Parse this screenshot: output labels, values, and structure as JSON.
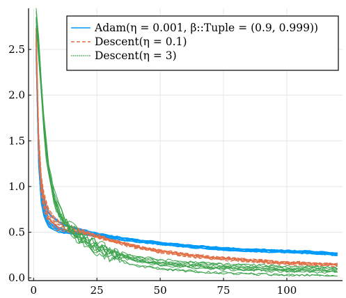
{
  "chart_data": {
    "type": "line",
    "title": "",
    "xlabel": "",
    "ylabel": "",
    "xlim": [
      -2,
      122
    ],
    "ylim": [
      -0.03,
      2.95
    ],
    "xticks": [
      0,
      25,
      50,
      75,
      100
    ],
    "xtick_labels": [
      "0",
      "25",
      "50",
      "75",
      "100"
    ],
    "yticks": [
      0.0,
      0.5,
      1.0,
      1.5,
      2.0,
      2.5
    ],
    "ytick_labels": [
      "0.0",
      "0.5",
      "1.0",
      "1.5",
      "2.0",
      "2.5"
    ],
    "grid": true,
    "legend_position": "top-right",
    "series": [
      {
        "name": "Adam(η = 0.001, β::Tuple = (0.9, 0.999))",
        "color": "#009AFA",
        "style": "solid",
        "runs": 10,
        "x": [
          1,
          2,
          3,
          4,
          5,
          6,
          8,
          10,
          12,
          15,
          20,
          25,
          30,
          40,
          50,
          60,
          70,
          80,
          90,
          100,
          110,
          120
        ],
        "values": [
          2.55,
          1.35,
          0.93,
          0.78,
          0.7,
          0.64,
          0.59,
          0.56,
          0.54,
          0.52,
          0.5,
          0.47,
          0.45,
          0.41,
          0.38,
          0.35,
          0.33,
          0.31,
          0.3,
          0.29,
          0.28,
          0.26
        ]
      },
      {
        "name": "Descent(η = 0.1)",
        "color": "#E26F46",
        "style": "dashed",
        "runs": 10,
        "x": [
          1,
          2,
          3,
          4,
          5,
          6,
          8,
          10,
          12,
          15,
          20,
          25,
          30,
          40,
          50,
          60,
          70,
          80,
          90,
          100,
          110,
          120
        ],
        "values": [
          2.6,
          1.45,
          1.0,
          0.83,
          0.74,
          0.67,
          0.6,
          0.56,
          0.54,
          0.52,
          0.49,
          0.45,
          0.41,
          0.34,
          0.29,
          0.25,
          0.22,
          0.2,
          0.18,
          0.16,
          0.15,
          0.14
        ]
      },
      {
        "name": "Descent(η = 3)",
        "color": "#3DA44D",
        "style": "dotted",
        "runs": 10,
        "x": [
          1,
          2,
          3,
          4,
          5,
          6,
          8,
          10,
          12,
          15,
          20,
          25,
          30,
          40,
          50,
          60,
          70,
          80,
          90,
          100,
          110,
          120
        ],
        "values": [
          2.8,
          2.5,
          2.05,
          1.68,
          1.38,
          1.15,
          0.88,
          0.7,
          0.6,
          0.5,
          0.4,
          0.32,
          0.26,
          0.18,
          0.14,
          0.12,
          0.1,
          0.09,
          0.08,
          0.07,
          0.07,
          0.06
        ]
      }
    ]
  }
}
